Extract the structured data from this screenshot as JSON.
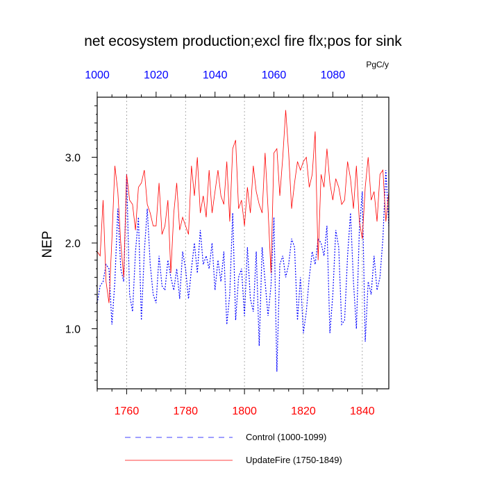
{
  "chart_data": {
    "type": "line",
    "title": "net ecosystem production;excl fire flx;pos for sink",
    "units": "PgC/y",
    "ylabel": "NEP",
    "ylim": [
      0.3,
      3.7
    ],
    "y_ticks": [
      1.0,
      2.0,
      3.0
    ],
    "y_tick_labels": [
      "1.0",
      "2.0",
      "3.0"
    ],
    "x_bottom": {
      "range": [
        1750,
        1849
      ],
      "ticks": [
        1760,
        1780,
        1800,
        1820,
        1840
      ],
      "color": "#ff0000"
    },
    "x_top": {
      "range": [
        1000,
        1099
      ],
      "ticks": [
        1000,
        1020,
        1040,
        1060,
        1080
      ],
      "color": "#0000ff"
    },
    "vertical_gridlines": [
      1760,
      1780,
      1800,
      1820,
      1840
    ],
    "legend": {
      "placement": "bottom"
    },
    "series": [
      {
        "name": "Control (1000-1099)",
        "color": "#0000ff",
        "style": "dashed",
        "x_start": 1000,
        "values": [
          1.3,
          1.5,
          1.55,
          1.75,
          1.7,
          1.05,
          1.55,
          2.4,
          1.7,
          1.55,
          2.8,
          1.4,
          1.2,
          1.9,
          2.3,
          1.1,
          1.9,
          2.4,
          1.75,
          1.4,
          1.3,
          1.85,
          1.5,
          1.45,
          1.8,
          1.6,
          1.45,
          1.7,
          1.35,
          1.9,
          1.7,
          1.35,
          1.7,
          2.0,
          1.65,
          2.15,
          1.75,
          1.85,
          1.7,
          2.0,
          1.45,
          1.8,
          1.55,
          1.9,
          1.05,
          1.4,
          2.35,
          1.1,
          1.6,
          1.7,
          1.15,
          1.95,
          1.35,
          1.2,
          1.9,
          0.8,
          1.95,
          1.55,
          1.15,
          1.5,
          2.3,
          0.5,
          1.75,
          1.85,
          1.6,
          1.75,
          2.05,
          1.95,
          1.1,
          1.6,
          0.95,
          1.2,
          1.6,
          1.9,
          1.75,
          2.05,
          2.0,
          1.85,
          2.2,
          0.95,
          1.4,
          2.15,
          1.95,
          1.05,
          1.1,
          1.85,
          2.35,
          1.55,
          1.0,
          2.15,
          2.6,
          0.85,
          1.55,
          1.4,
          1.85,
          1.45,
          1.6,
          2.05,
          2.85,
          2.2
        ]
      },
      {
        "name": "UpdateFire (1750-1849)",
        "color": "#ff0000",
        "style": "solid",
        "x_start": 1750,
        "values": [
          1.9,
          1.85,
          2.5,
          1.55,
          1.3,
          2.05,
          2.9,
          2.6,
          2.0,
          1.6,
          2.8,
          2.5,
          2.45,
          2.15,
          2.65,
          2.7,
          2.85,
          2.45,
          2.35,
          2.2,
          2.2,
          2.7,
          2.1,
          2.2,
          2.5,
          1.65,
          2.35,
          2.7,
          2.15,
          2.3,
          2.2,
          2.1,
          2.9,
          2.55,
          3.0,
          2.35,
          2.55,
          2.3,
          2.85,
          2.35,
          2.6,
          2.85,
          2.55,
          2.45,
          2.95,
          2.25,
          3.1,
          3.2,
          2.4,
          2.5,
          2.2,
          2.65,
          2.35,
          2.9,
          2.6,
          2.45,
          2.35,
          3.05,
          2.4,
          1.65,
          3.05,
          3.1,
          2.55,
          3.0,
          3.55,
          3.05,
          2.4,
          2.7,
          2.95,
          2.85,
          2.95,
          3.0,
          2.65,
          2.8,
          3.3,
          1.8,
          2.8,
          2.65,
          3.1,
          2.7,
          2.5,
          2.75,
          2.65,
          2.45,
          2.5,
          2.95,
          2.75,
          2.4,
          2.9,
          2.25,
          2.05,
          2.65,
          3.0,
          2.5,
          2.6,
          2.25,
          2.8,
          2.85,
          2.25,
          2.6
        ]
      }
    ]
  }
}
